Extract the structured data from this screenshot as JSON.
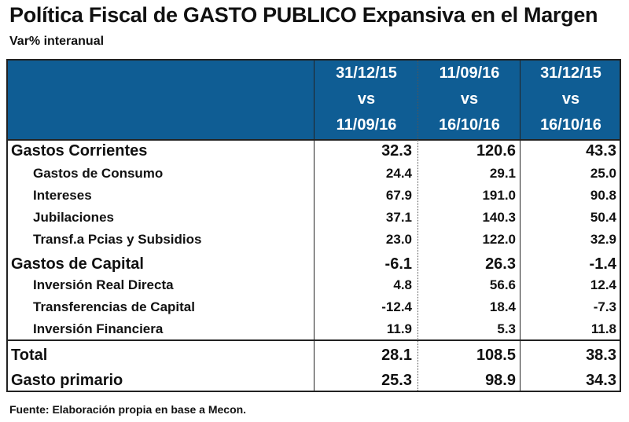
{
  "title": "Política Fiscal de GASTO PUBLICO Expansiva en el Margen",
  "subtitle": "Var% interanual",
  "header_color": "#0f5d94",
  "columns": [
    {
      "from": "31/12/15",
      "vs": "vs",
      "to": "11/09/16"
    },
    {
      "from": "11/09/16",
      "vs": "vs",
      "to": "16/10/16"
    },
    {
      "from": "31/12/15",
      "vs": "vs",
      "to": "16/10/16"
    }
  ],
  "rows": [
    {
      "label": "Gastos Corrientes",
      "level": "major",
      "values": [
        "32.3",
        "120.6",
        "43.3"
      ]
    },
    {
      "label": "Gastos de Consumo",
      "level": "minor",
      "values": [
        "24.4",
        "29.1",
        "25.0"
      ]
    },
    {
      "label": "Intereses",
      "level": "minor",
      "values": [
        "67.9",
        "191.0",
        "90.8"
      ]
    },
    {
      "label": "Jubilaciones",
      "level": "minor",
      "values": [
        "37.1",
        "140.3",
        "50.4"
      ]
    },
    {
      "label": "Transf.a Pcias y Subsidios",
      "level": "minor",
      "values": [
        "23.0",
        "122.0",
        "32.9"
      ]
    },
    {
      "label": "Gastos de Capital",
      "level": "major",
      "values": [
        "-6.1",
        "26.3",
        "-1.4"
      ]
    },
    {
      "label": "Inversión Real Directa",
      "level": "minor",
      "values": [
        "4.8",
        "56.6",
        "12.4"
      ]
    },
    {
      "label": "Transferencias de Capital",
      "level": "minor",
      "values": [
        "-12.4",
        "18.4",
        "-7.3"
      ]
    },
    {
      "label": "Inversión Financiera",
      "level": "minor",
      "values": [
        "11.9",
        "5.3",
        "11.8"
      ]
    },
    {
      "label": "Total",
      "level": "major",
      "values": [
        "28.1",
        "108.5",
        "38.3"
      ]
    },
    {
      "label": "Gasto primario",
      "level": "major",
      "values": [
        "25.3",
        "98.9",
        "34.3"
      ]
    }
  ],
  "footer": "Fuente: Elaboración propia en base a Mecon."
}
